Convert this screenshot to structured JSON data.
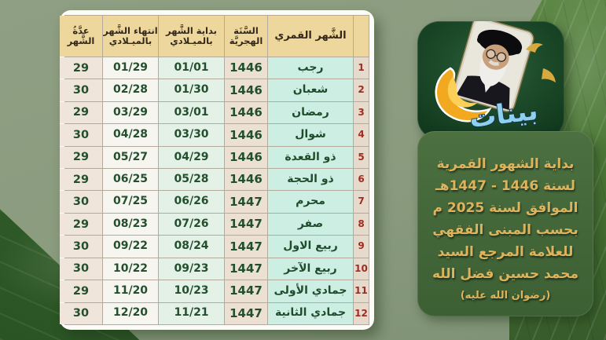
{
  "colors": {
    "background_sage": "#8a9b7e",
    "background_marble": "#4f7a3a",
    "background_fabric": "#33602a",
    "table_frame": "#fcfbf7",
    "header_bg": "#edd79c",
    "header_text": "#33281a",
    "month_cell_bg": "#cdeee3",
    "index_text_red": "#a02c20",
    "data_text_green": "#234f2e",
    "panel_green": "#436639",
    "caption_gold": "#ddb45c"
  },
  "table_headers": {
    "index": "",
    "month": "الشَّهر القمري",
    "year": "السَّنَة\nالهجريَّة",
    "start": "بداية الشَّهر\nبالميـلادي",
    "end": "انتهاء الشَّهر\nبالميـلادي",
    "days": "عدَّةُ\nالشَّهر"
  },
  "chart_data": {
    "type": "table",
    "direction": "rtl",
    "title": "بداية الشهور القمرية لسنة 1446 - 1447هـ الموافق لسنة 2025 م",
    "columns": [
      "الشَّهر القمري",
      "السَّنَة الهجريَّة",
      "بداية الشَّهر بالميـلادي",
      "انتهاء الشَّهر بالميـلادي",
      "عدَّةُ الشَّهر"
    ],
    "rows": [
      {
        "no": "1",
        "month": "رجب",
        "year": "1446",
        "start": "01/01",
        "end": "01/29",
        "days": "29"
      },
      {
        "no": "2",
        "month": "شعبان",
        "year": "1446",
        "start": "01/30",
        "end": "02/28",
        "days": "30"
      },
      {
        "no": "3",
        "month": "رمضان",
        "year": "1446",
        "start": "03/01",
        "end": "03/29",
        "days": "29"
      },
      {
        "no": "4",
        "month": "شوال",
        "year": "1446",
        "start": "03/30",
        "end": "04/28",
        "days": "30"
      },
      {
        "no": "5",
        "month": "ذو القعدة",
        "year": "1446",
        "start": "04/29",
        "end": "05/27",
        "days": "29"
      },
      {
        "no": "6",
        "month": "ذو الحجة",
        "year": "1446",
        "start": "05/28",
        "end": "06/25",
        "days": "29"
      },
      {
        "no": "7",
        "month": "محرم",
        "year": "1447",
        "start": "06/26",
        "end": "07/25",
        "days": "30"
      },
      {
        "no": "8",
        "month": "صفر",
        "year": "1447",
        "start": "07/26",
        "end": "08/23",
        "days": "29"
      },
      {
        "no": "9",
        "month": "ربيع الاول",
        "year": "1447",
        "start": "08/24",
        "end": "09/22",
        "days": "30"
      },
      {
        "no": "10",
        "month": "ربيع الآخر",
        "year": "1447",
        "start": "09/23",
        "end": "10/22",
        "days": "30"
      },
      {
        "no": "11",
        "month": "جمادي الأولى",
        "year": "1447",
        "start": "10/23",
        "end": "11/20",
        "days": "29"
      },
      {
        "no": "12",
        "month": "جمادي الثانية",
        "year": "1447",
        "start": "11/21",
        "end": "12/20",
        "days": "30"
      }
    ]
  },
  "side_panel": {
    "lines": [
      "بداية الشهور القمرية",
      "لسنة 1446 - 1447هـ",
      "الموافق لسنة 2025 م",
      "بحسب المبنى الفقهي",
      "للعلامة المرجع السيد",
      "محمد حسين فضل الله",
      "(رضوان الله عليه)"
    ]
  },
  "logo": {
    "calligraphy_text": "بينات"
  }
}
